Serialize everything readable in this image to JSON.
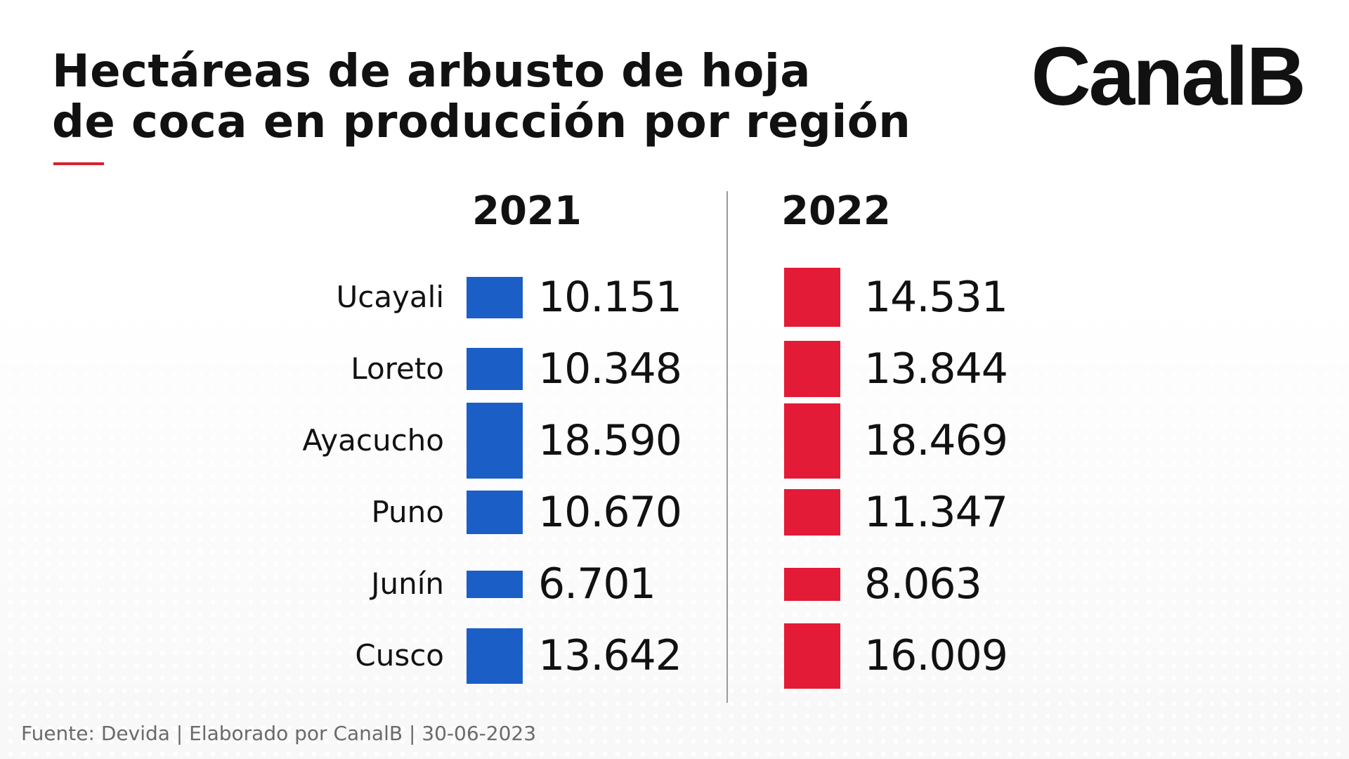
{
  "header": {
    "title_line1": "Hectáreas de arbusto de hoja",
    "title_line2": "de coca en producción por región",
    "logo": "CanalB"
  },
  "footer": {
    "source": "Fuente: Devida | Elaborado por CanalB | 30-06-2023"
  },
  "colors": {
    "series_2021": "#1b5fc6",
    "series_2022": "#e31b36",
    "accent": "#d8202f"
  },
  "chart_data": {
    "type": "bar",
    "title": "Hectáreas de arbusto de hoja de coca en producción por región",
    "categories": [
      "Ucayali",
      "Loreto",
      "Ayacucho",
      "Puno",
      "Junín",
      "Cusco"
    ],
    "series": [
      {
        "name": "2021",
        "values": [
          10151,
          10348,
          18590,
          10670,
          6701,
          13642
        ],
        "labels": [
          "10.151",
          "10.348",
          "18.590",
          "10.670",
          "6.701",
          "13.642"
        ],
        "color": "#1b5fc6"
      },
      {
        "name": "2022",
        "values": [
          14531,
          13844,
          18469,
          11347,
          8063,
          16009
        ],
        "labels": [
          "14.531",
          "13.844",
          "18.469",
          "11.347",
          "8.063",
          "16.009"
        ],
        "color": "#e31b36"
      }
    ]
  }
}
